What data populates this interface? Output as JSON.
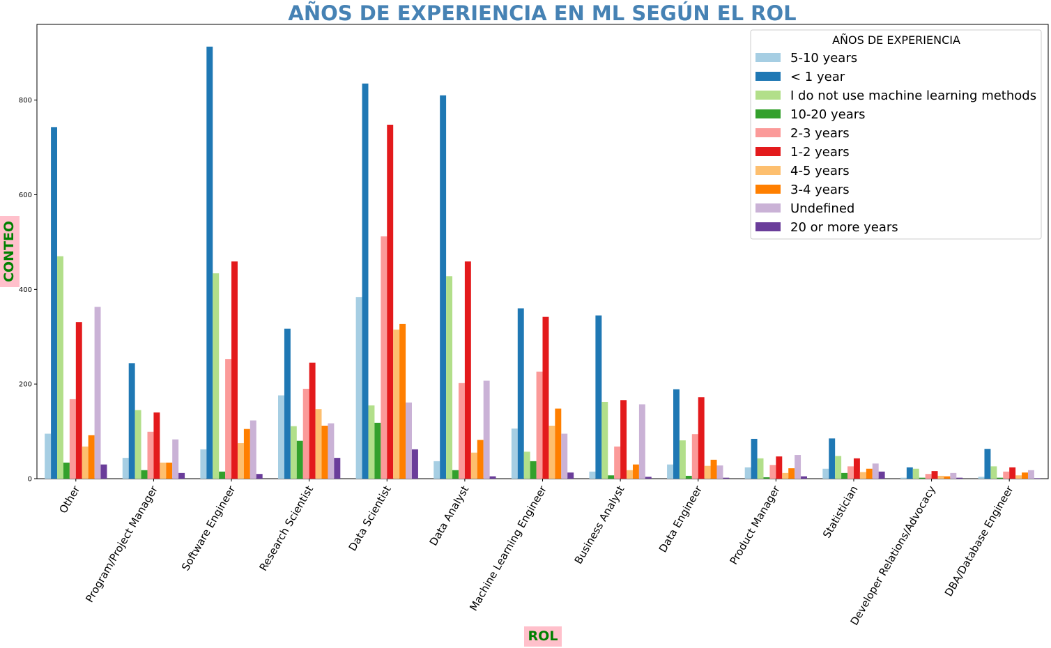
{
  "chart_data": {
    "type": "bar",
    "title": "AÑOS DE EXPERIENCIA EN ML SEGÚN EL ROL",
    "xlabel": "ROL",
    "ylabel": "CONTEO",
    "ylim": [
      0,
      960
    ],
    "yticks": [
      0,
      200,
      400,
      600,
      800
    ],
    "legend_title": "AÑOS DE EXPERIENCIA",
    "legend_position": "top-right",
    "grid": false,
    "axis_label_background": "#ffc0cb",
    "categories": [
      "Other",
      "Program/Project Manager",
      "Software Engineer",
      "Research Scientist",
      "Data Scientist",
      "Data Analyst",
      "Machine Learning Engineer",
      "Business Analyst",
      "Data Engineer",
      "Product Manager",
      "Statistician",
      "Developer Relations/Advocacy",
      "DBA/Database Engineer"
    ],
    "series": [
      {
        "name": "5-10 years",
        "color": "#a6cee3",
        "values": [
          95,
          44,
          62,
          176,
          384,
          37,
          106,
          15,
          30,
          24,
          21,
          2,
          4
        ]
      },
      {
        "name": "< 1 year",
        "color": "#1f78b4",
        "values": [
          743,
          244,
          913,
          317,
          835,
          810,
          360,
          345,
          189,
          84,
          85,
          24,
          63
        ]
      },
      {
        "name": "I do not use machine learning methods",
        "color": "#b2df8a",
        "values": [
          470,
          145,
          434,
          111,
          155,
          428,
          57,
          162,
          81,
          43,
          48,
          21,
          26
        ]
      },
      {
        "name": "10-20 years",
        "color": "#33a02c",
        "values": [
          34,
          18,
          15,
          80,
          118,
          18,
          37,
          7,
          6,
          3,
          12,
          2,
          2
        ]
      },
      {
        "name": "2-3 years",
        "color": "#fb9a99",
        "values": [
          168,
          99,
          253,
          190,
          512,
          202,
          226,
          68,
          94,
          29,
          26,
          10,
          15
        ]
      },
      {
        "name": "1-2 years",
        "color": "#e31a1c",
        "values": [
          331,
          140,
          459,
          245,
          748,
          459,
          342,
          166,
          172,
          47,
          43,
          16,
          24
        ]
      },
      {
        "name": "4-5 years",
        "color": "#fdbf6f",
        "values": [
          68,
          34,
          75,
          147,
          315,
          55,
          112,
          18,
          27,
          12,
          14,
          6,
          7
        ]
      },
      {
        "name": "3-4 years",
        "color": "#ff7f00",
        "values": [
          92,
          34,
          105,
          112,
          327,
          82,
          148,
          30,
          40,
          22,
          21,
          5,
          13
        ]
      },
      {
        "name": "Undefined",
        "color": "#cab2d6",
        "values": [
          363,
          83,
          123,
          117,
          161,
          207,
          95,
          157,
          28,
          50,
          32,
          12,
          18
        ]
      },
      {
        "name": "20 or more years",
        "color": "#6a3d9a",
        "values": [
          30,
          12,
          10,
          44,
          62,
          5,
          13,
          4,
          2,
          5,
          15,
          2,
          1
        ]
      }
    ]
  }
}
